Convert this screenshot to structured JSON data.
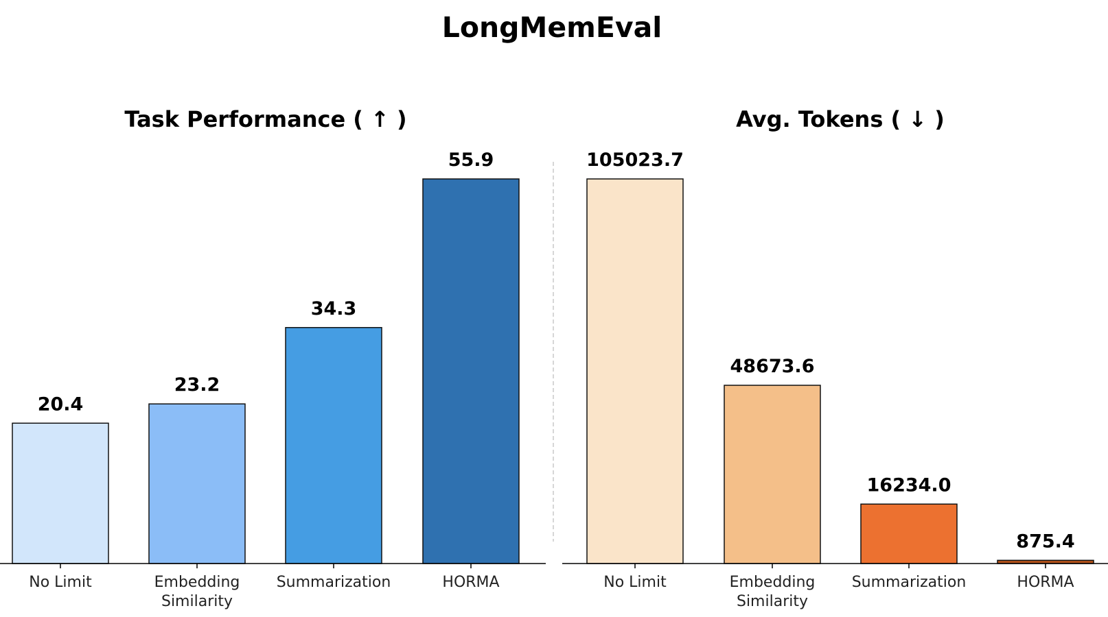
{
  "figure_title": "LongMemEval",
  "chart_data": [
    {
      "type": "bar",
      "title": "Task Performance ( ↑ )",
      "categories": [
        [
          "No Limit"
        ],
        [
          "Embedding",
          "Similarity"
        ],
        [
          "Summarization"
        ],
        [
          "HORMA"
        ]
      ],
      "values": [
        20.4,
        23.2,
        34.3,
        55.9
      ],
      "value_labels": [
        "20.4",
        "23.2",
        "34.3",
        "55.9"
      ],
      "colors": [
        "#d2e6fb",
        "#8bbdf7",
        "#459de3",
        "#2f71b0"
      ],
      "ylim": [
        0,
        55.9
      ],
      "grid": false,
      "legend": "none"
    },
    {
      "type": "bar",
      "title": "Avg. Tokens ( ↓ )",
      "categories": [
        [
          "No Limit"
        ],
        [
          "Embedding",
          "Similarity"
        ],
        [
          "Summarization"
        ],
        [
          "HORMA"
        ]
      ],
      "values": [
        105023.7,
        48673.6,
        16234.0,
        875.4
      ],
      "value_labels": [
        "105023.7",
        "48673.6",
        "16234.0",
        "875.4"
      ],
      "colors": [
        "#fae4c9",
        "#f4bf89",
        "#ec7130",
        "#b2521b"
      ],
      "ylim": [
        0,
        105023.7
      ],
      "grid": false,
      "legend": "none"
    }
  ]
}
